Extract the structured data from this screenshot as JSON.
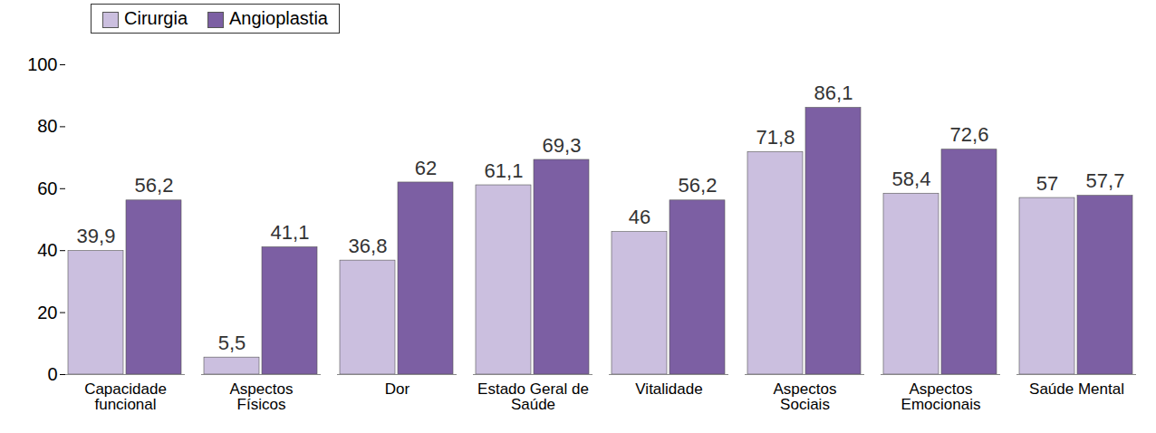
{
  "chart_data": {
    "type": "bar",
    "categories": [
      "Capacidade funcional",
      "Aspectos Físicos",
      "Dor",
      "Estado Geral de Saúde",
      "Vitalidade",
      "Aspectos Sociais",
      "Aspectos Emocionais",
      "Saúde Mental"
    ],
    "series": [
      {
        "name": "Cirurgia",
        "color": "#cbbfdf",
        "values": [
          39.9,
          5.5,
          36.8,
          61.1,
          46,
          71.8,
          58.4,
          57
        ],
        "value_labels": [
          "39,9",
          "5,5",
          "36,8",
          "61,1",
          "46",
          "71,8",
          "58,4",
          "57"
        ]
      },
      {
        "name": "Angioplastia",
        "color": "#7c5fa3",
        "values": [
          56.2,
          41.1,
          62,
          69.3,
          56.2,
          86.1,
          72.6,
          57.7
        ],
        "value_labels": [
          "56,2",
          "41,1",
          "62",
          "69,3",
          "56,2",
          "86,1",
          "72,6",
          "57,7"
        ]
      }
    ],
    "ylim": [
      0,
      100
    ],
    "yticks": [
      0,
      20,
      40,
      60,
      80,
      100
    ],
    "grid": false,
    "legend": "top-left",
    "data_labels": true
  }
}
